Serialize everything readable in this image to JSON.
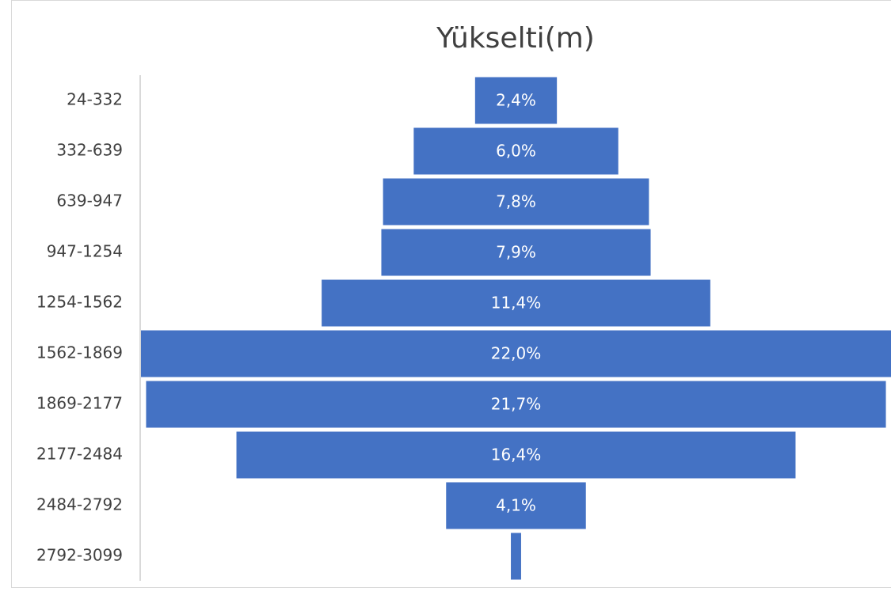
{
  "chart_data": {
    "type": "funnel",
    "title": "Yükselti(m)",
    "categories": [
      "24-332",
      "332-639",
      "639-947",
      "947-1254",
      "1254-1562",
      "1562-1869",
      "1869-2177",
      "2177-2484",
      "2484-2792",
      "2792-3099"
    ],
    "values": [
      2.4,
      6.0,
      7.8,
      7.9,
      11.4,
      22.0,
      21.7,
      16.4,
      4.1,
      0.3
    ],
    "value_labels": [
      "2,4%",
      "6,0%",
      "7,8%",
      "7,9%",
      "11,4%",
      "22,0%",
      "21,7%",
      "16,4%",
      "4,1%",
      null
    ],
    "color": "#4472c4"
  }
}
